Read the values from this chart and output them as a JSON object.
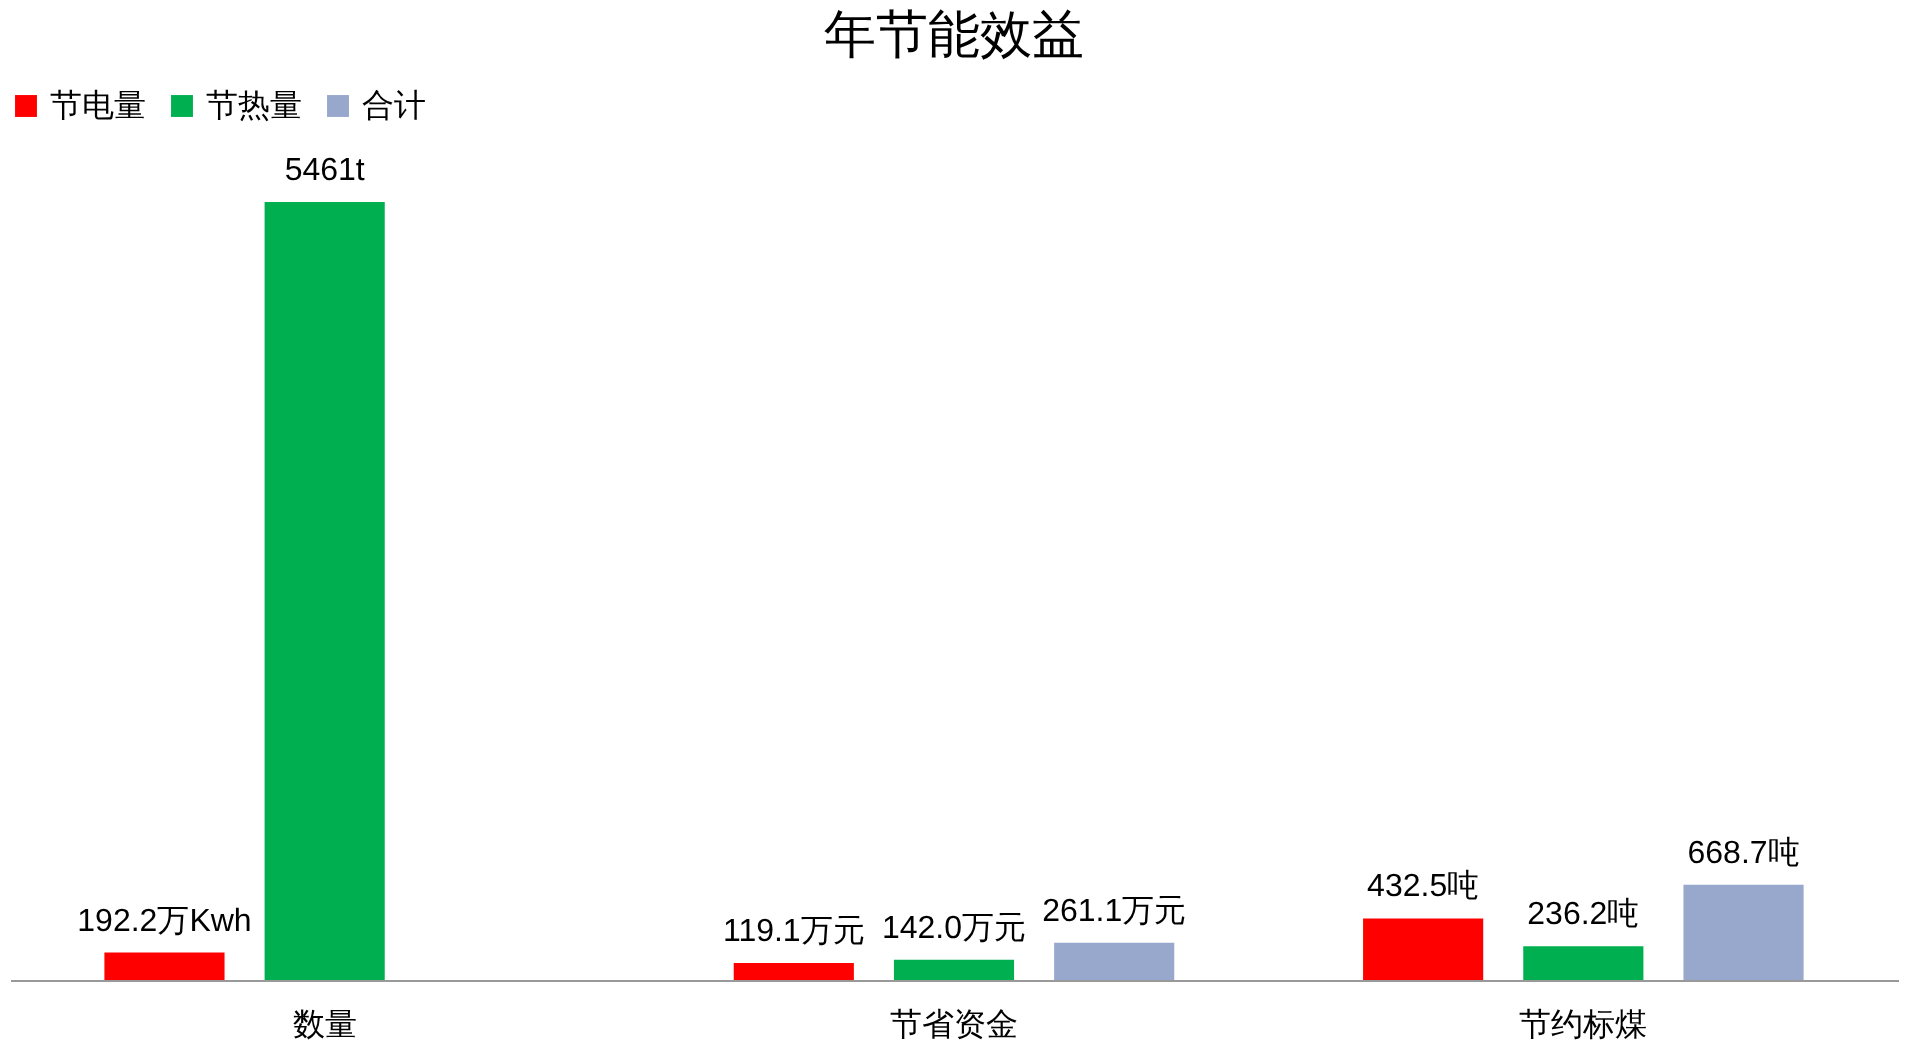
{
  "chart_data": {
    "type": "bar",
    "title": "年节能效益",
    "categories": [
      "数量",
      "节省资金",
      "节约标煤"
    ],
    "series": [
      {
        "name": "节电量",
        "color": "#ff0000",
        "values": [
          192.2,
          119.1,
          432.5
        ],
        "value_labels": [
          "192.2万Kwh",
          "119.1万元",
          "432.5吨"
        ]
      },
      {
        "name": "节热量",
        "color": "#00b050",
        "values": [
          5461,
          142.0,
          236.2
        ],
        "value_labels": [
          "5461t",
          "142.0万元",
          "236.2吨"
        ]
      },
      {
        "name": "合计",
        "color": "#98a8cc",
        "values": [
          null,
          261.1,
          668.7
        ],
        "value_labels": [
          null,
          "261.1万元",
          "668.7吨"
        ]
      }
    ],
    "legend": "top",
    "grid": false
  }
}
